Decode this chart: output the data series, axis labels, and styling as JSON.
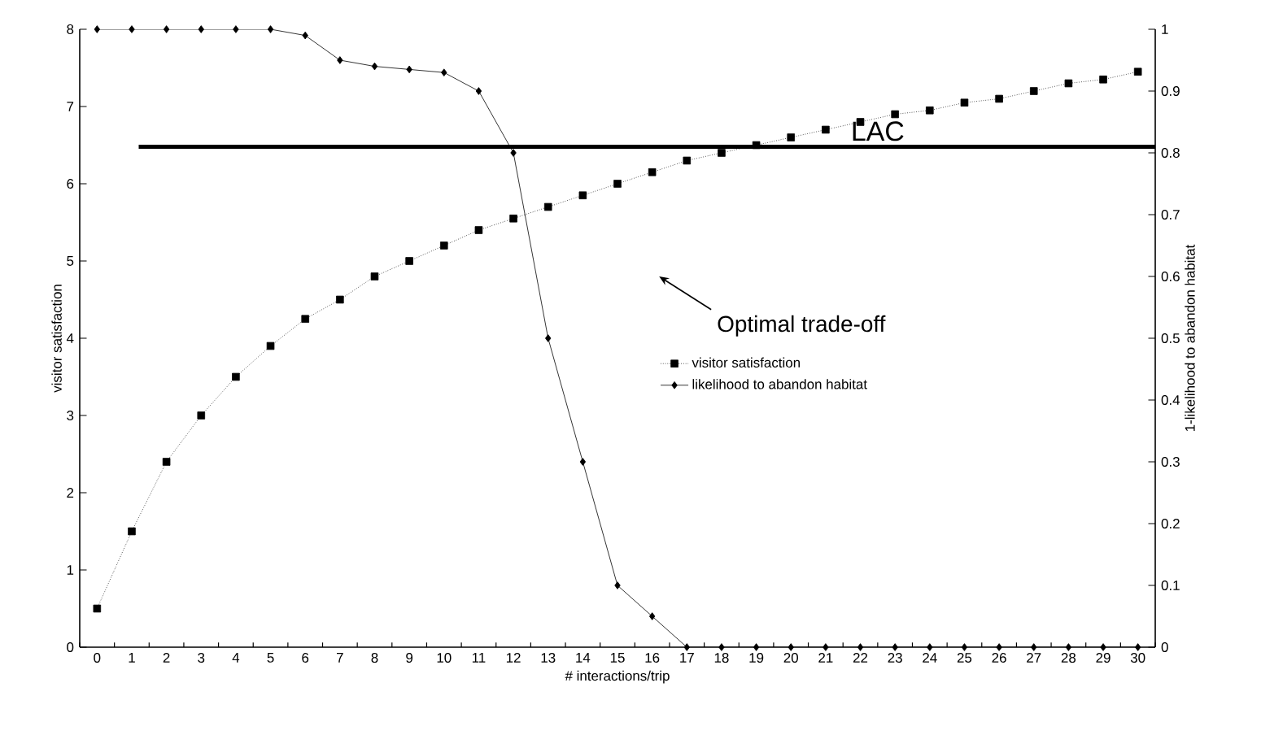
{
  "chart_data": {
    "type": "line",
    "xlabel": "# interactions/trip",
    "ylabel": "visitor satisfaction",
    "y2label": "1-likelihood to abandon habitat",
    "categories": [
      "0",
      "1",
      "2",
      "3",
      "4",
      "5",
      "6",
      "7",
      "8",
      "9",
      "10",
      "11",
      "12",
      "13",
      "14",
      "15",
      "16",
      "17",
      "18",
      "19",
      "20",
      "21",
      "22",
      "23",
      "24",
      "25",
      "26",
      "27",
      "28",
      "29",
      "30"
    ],
    "series": [
      {
        "name": "visitor satisfaction",
        "color": "#000000",
        "marker": "square",
        "line_style": "dotted",
        "values": [
          0.5,
          1.5,
          2.4,
          3.0,
          3.5,
          3.9,
          4.25,
          4.5,
          4.8,
          5.0,
          5.2,
          5.4,
          5.55,
          5.7,
          5.85,
          6.0,
          6.15,
          6.3,
          6.4,
          6.5,
          6.6,
          6.7,
          6.8,
          6.9,
          6.95,
          7.05,
          7.1,
          7.2,
          7.3,
          7.35,
          7.45
        ]
      },
      {
        "name": "likelihood to abandon habitat",
        "color": "#000000",
        "marker": "diamond",
        "line_style": "solid",
        "axis": "y2",
        "values": [
          1.0,
          1.0,
          1.0,
          1.0,
          1.0,
          1.0,
          0.99,
          0.95,
          0.94,
          0.935,
          0.93,
          0.9,
          0.8,
          0.5,
          0.3,
          0.1,
          0.05,
          0,
          0,
          0,
          0,
          0,
          0,
          0,
          0,
          0,
          0,
          0,
          0,
          0,
          0
        ]
      }
    ],
    "ylim": [
      0,
      8
    ],
    "yticks": [
      0,
      1,
      2,
      3,
      4,
      5,
      6,
      7,
      8
    ],
    "y2lim": [
      0,
      1
    ],
    "y2ticks": [
      0,
      0.1,
      0.2,
      0.3,
      0.4,
      0.5,
      0.6,
      0.7,
      0.8,
      0.9,
      1
    ],
    "ref_lines": [
      {
        "axis": "y2",
        "value": 0.81,
        "label": "LAC",
        "color": "#000000"
      }
    ],
    "annotations": [
      "Optimal trade-off"
    ],
    "legend": "center"
  }
}
